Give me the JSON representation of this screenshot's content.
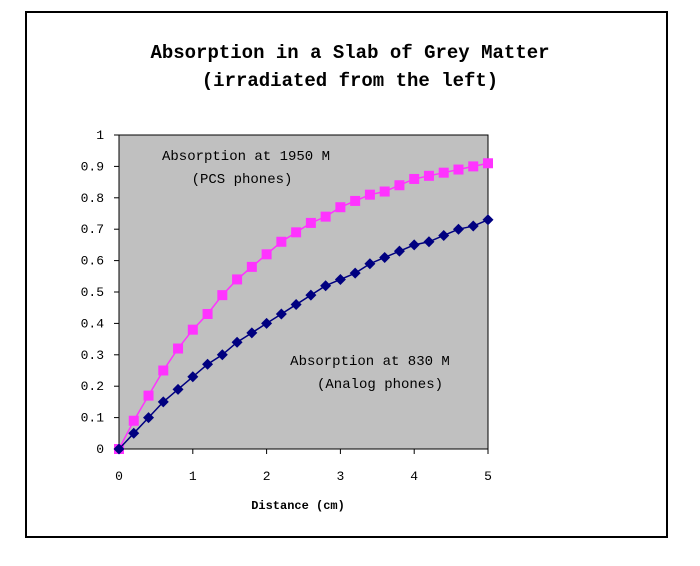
{
  "chart_data": {
    "type": "line",
    "title": "Absorption in a Slab of Grey Matter",
    "subtitle": "(irradiated from the left)",
    "xlabel": "Distance (cm)",
    "ylabel": "",
    "xlim": [
      0,
      5
    ],
    "ylim": [
      0,
      1
    ],
    "x_ticks": [
      0,
      1,
      2,
      3,
      4,
      5
    ],
    "y_ticks": [
      0,
      0.1,
      0.2,
      0.3,
      0.4,
      0.5,
      0.6,
      0.7,
      0.8,
      0.9,
      1
    ],
    "x_tick_labels": [
      "0",
      "1",
      "2",
      "3",
      "4",
      "5"
    ],
    "y_tick_labels": [
      "0",
      "0.1",
      "0.2",
      "0.3",
      "0.4",
      "0.5",
      "0.6",
      "0.7",
      "0.8",
      "0.9",
      "1"
    ],
    "grid": false,
    "plot_background": "#c0c0c0",
    "x": [
      0,
      0.2,
      0.4,
      0.6,
      0.8,
      1.0,
      1.2,
      1.4,
      1.6,
      1.8,
      2.0,
      2.2,
      2.4,
      2.6,
      2.8,
      3.0,
      3.2,
      3.4,
      3.6,
      3.8,
      4.0,
      4.2,
      4.4,
      4.6,
      4.8,
      5.0
    ],
    "series": [
      {
        "color": "#ff33ff",
        "marker": "square",
        "values": [
          0,
          0.09,
          0.17,
          0.25,
          0.32,
          0.38,
          0.43,
          0.49,
          0.54,
          0.58,
          0.62,
          0.66,
          0.69,
          0.72,
          0.74,
          0.77,
          0.79,
          0.81,
          0.82,
          0.84,
          0.86,
          0.87,
          0.88,
          0.89,
          0.9,
          0.91
        ]
      },
      {
        "color": "#000080",
        "marker": "diamond",
        "values": [
          0,
          0.05,
          0.1,
          0.15,
          0.19,
          0.23,
          0.27,
          0.3,
          0.34,
          0.37,
          0.4,
          0.43,
          0.46,
          0.49,
          0.52,
          0.54,
          0.56,
          0.59,
          0.61,
          0.63,
          0.65,
          0.66,
          0.68,
          0.7,
          0.71,
          0.73
        ]
      }
    ],
    "annotations": [
      {
        "lines": [
          "Absorption at 1950 M",
          "(PCS phones)"
        ]
      },
      {
        "lines": [
          "Absorption at 830 M",
          "(Analog phones)"
        ]
      }
    ]
  }
}
